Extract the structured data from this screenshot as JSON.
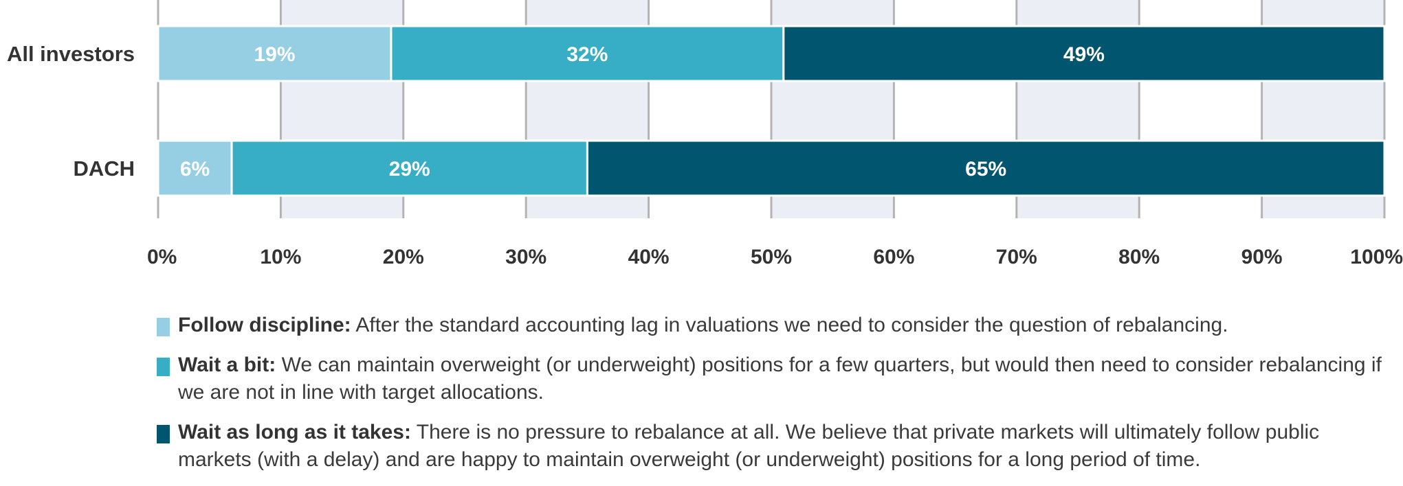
{
  "chart_data": {
    "type": "bar",
    "orientation": "horizontal",
    "stacked": true,
    "categories": [
      "All investors",
      "DACH"
    ],
    "series": [
      {
        "name": "Follow discipline",
        "color": "#96cfe4",
        "values": [
          19,
          6
        ],
        "labels": [
          "19%",
          "6%"
        ]
      },
      {
        "name": "Wait a bit",
        "color": "#38aec6",
        "values": [
          32,
          29
        ],
        "labels": [
          "32%",
          "29%"
        ]
      },
      {
        "name": "Wait as long as it takes",
        "color": "#02556f",
        "values": [
          49,
          65
        ],
        "labels": [
          "49%",
          "65%"
        ]
      }
    ],
    "xlim": [
      0,
      100
    ],
    "xticks": [
      0,
      10,
      20,
      30,
      40,
      50,
      60,
      70,
      80,
      90,
      100
    ],
    "xtick_labels": [
      "0%",
      "10%",
      "20%",
      "30%",
      "40%",
      "50%",
      "60%",
      "70%",
      "80%",
      "90%",
      "100%"
    ],
    "grid": true,
    "grid_band_color": "#ebeef4",
    "gridline_color": "#b3b3b3",
    "legend_position": "bottom"
  },
  "legend": [
    {
      "label": "Follow discipline:",
      "text": "After the standard accounting lag in valuations we need to consider the question of rebalancing.",
      "color": "#96cfe4"
    },
    {
      "label": "Wait a bit:",
      "text": "We can maintain overweight (or underweight) positions for a few quarters, but would then need to consider rebalancing if we are not in line with target allocations.",
      "color": "#38aec6"
    },
    {
      "label": "Wait as long as it takes:",
      "text": "There is no pressure to rebalance at all. We believe that private markets will ultimately follow public markets (with a delay) and are happy to maintain overweight (or underweight) positions for a long period of time.",
      "color": "#02556f"
    }
  ]
}
